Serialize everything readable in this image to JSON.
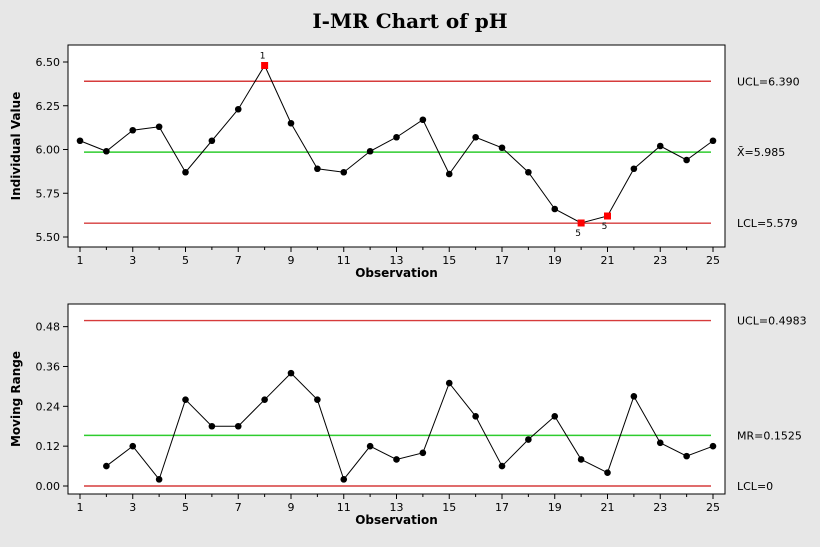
{
  "chart_data": [
    {
      "type": "line",
      "title": "I-MR Chart of pH",
      "panel": "individual",
      "xlabel": "Observation",
      "ylabel": "Individual Value",
      "xlim": [
        1,
        25
      ],
      "ylim": [
        5.5,
        6.5
      ],
      "x_ticks": [
        "1",
        "3",
        "5",
        "7",
        "9",
        "11",
        "13",
        "15",
        "17",
        "19",
        "21",
        "23",
        "25"
      ],
      "y_ticks": [
        "5.50",
        "5.75",
        "6.00",
        "6.25",
        "6.50"
      ],
      "x": [
        1,
        2,
        3,
        4,
        5,
        6,
        7,
        8,
        9,
        10,
        11,
        12,
        13,
        14,
        15,
        16,
        17,
        18,
        19,
        20,
        21,
        22,
        23,
        24,
        25
      ],
      "values": [
        6.05,
        5.99,
        6.11,
        6.13,
        5.87,
        6.05,
        6.23,
        6.48,
        6.15,
        5.89,
        5.87,
        5.99,
        6.07,
        6.17,
        5.86,
        6.07,
        6.01,
        5.87,
        5.66,
        5.58,
        5.62,
        5.89,
        6.02,
        5.94,
        6.05
      ],
      "limits": [
        {
          "label": "UCL=6.390",
          "value": 6.39,
          "color": "#d63b3b"
        },
        {
          "label": "X̄=5.985",
          "value": 5.985,
          "color": "#2ecc2e"
        },
        {
          "label": "LCL=5.579",
          "value": 5.579,
          "color": "#d63b3b"
        }
      ],
      "flagged": [
        {
          "x": 8,
          "label": "1",
          "position": "above"
        },
        {
          "x": 20,
          "label": "5",
          "position": "below"
        },
        {
          "x": 21,
          "label": "5",
          "position": "below"
        }
      ]
    },
    {
      "type": "line",
      "panel": "moving-range",
      "xlabel": "Observation",
      "ylabel": "Moving Range",
      "xlim": [
        1,
        25
      ],
      "ylim": [
        0,
        0.5
      ],
      "x_ticks": [
        "1",
        "3",
        "5",
        "7",
        "9",
        "11",
        "13",
        "15",
        "17",
        "19",
        "21",
        "23",
        "25"
      ],
      "y_ticks": [
        "0.00",
        "0.12",
        "0.24",
        "0.36",
        "0.48"
      ],
      "x": [
        2,
        3,
        4,
        5,
        6,
        7,
        8,
        9,
        10,
        11,
        12,
        13,
        14,
        15,
        16,
        17,
        18,
        19,
        20,
        21,
        22,
        23,
        24,
        25
      ],
      "values": [
        0.06,
        0.12,
        0.02,
        0.26,
        0.18,
        0.18,
        0.26,
        0.34,
        0.26,
        0.02,
        0.12,
        0.08,
        0.1,
        0.31,
        0.21,
        0.06,
        0.14,
        0.21,
        0.08,
        0.04,
        0.27,
        0.13,
        0.09,
        0.12
      ],
      "limits": [
        {
          "label": "UCL=0.4983",
          "value": 0.4983,
          "color": "#d63b3b"
        },
        {
          "label": "MR=0.1525",
          "value": 0.1525,
          "color": "#2ecc2e"
        },
        {
          "label": "LCL=0",
          "value": 0,
          "color": "#d63b3b"
        }
      ]
    }
  ],
  "colors": {
    "background": "#e7e7e7",
    "plot_background": "#ffffff",
    "series": "#000000",
    "flagged": "#ff0000"
  }
}
